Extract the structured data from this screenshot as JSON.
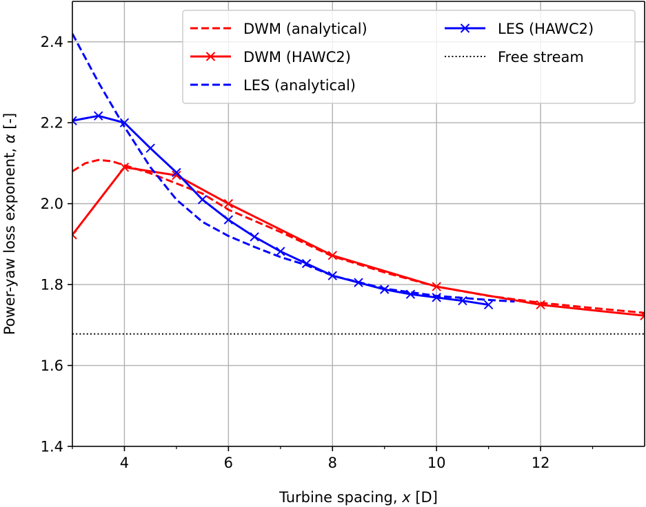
{
  "chart_data": {
    "type": "line",
    "title": "",
    "xlabel": "Turbine spacing, ",
    "xlabel_var": "x",
    "xlabel_unit": " [D]",
    "ylabel": "Power-yaw loss exponent, ",
    "ylabel_var": "α",
    "ylabel_unit": " [-]",
    "xlim": [
      3,
      14
    ],
    "ylim": [
      1.4,
      2.5
    ],
    "xticks": [
      4,
      6,
      8,
      10,
      12
    ],
    "xticks_minor": [
      3,
      5,
      7,
      9,
      11,
      13
    ],
    "yticks": [
      1.4,
      1.6,
      1.8,
      2.0,
      2.2,
      2.4
    ],
    "ytick_labels": [
      "1.4",
      "1.6",
      "1.8",
      "2.0",
      "2.2",
      "2.4"
    ],
    "grid": true,
    "legend_position": "top-right",
    "series": [
      {
        "name": "DWM (analytical)",
        "color": "#ff0000",
        "style": "dashed",
        "marker": "none",
        "x": [
          3.0,
          3.25,
          3.5,
          3.75,
          4.0,
          4.5,
          5.0,
          5.5,
          6.0,
          7.0,
          8.0,
          9.0,
          10.0,
          11.0,
          12.0,
          13.0,
          14.0
        ],
        "y": [
          2.08,
          2.1,
          2.108,
          2.105,
          2.095,
          2.075,
          2.05,
          2.025,
          1.985,
          1.93,
          1.87,
          1.83,
          1.795,
          1.772,
          1.755,
          1.742,
          1.73
        ]
      },
      {
        "name": "DWM (HAWC2)",
        "color": "#ff0000",
        "style": "solid",
        "marker": "x",
        "x": [
          3,
          4,
          5,
          6,
          8,
          10,
          12,
          14
        ],
        "y": [
          1.923,
          2.09,
          2.07,
          2.0,
          1.872,
          1.795,
          1.75,
          1.723
        ]
      },
      {
        "name": "LES (analytical)",
        "color": "#0000ff",
        "style": "dashed",
        "marker": "none",
        "x": [
          3.0,
          3.5,
          4.0,
          4.5,
          5.0,
          5.5,
          6.0,
          6.5,
          7.0,
          7.5,
          8.0,
          9.0,
          10.0,
          11.0,
          11.5
        ],
        "y": [
          2.42,
          2.3,
          2.19,
          2.09,
          2.01,
          1.955,
          1.92,
          1.893,
          1.868,
          1.848,
          1.822,
          1.79,
          1.772,
          1.762,
          1.758
        ]
      },
      {
        "name": "LES (HAWC2)",
        "color": "#0000ff",
        "style": "solid",
        "marker": "x",
        "x": [
          3.0,
          3.5,
          4.0,
          4.5,
          5.0,
          5.5,
          6.0,
          6.5,
          7.0,
          7.5,
          8.0,
          8.5,
          9.0,
          9.5,
          10.0,
          10.5,
          11.0
        ],
        "y": [
          2.205,
          2.217,
          2.2,
          2.137,
          2.077,
          2.01,
          1.96,
          1.918,
          1.882,
          1.852,
          1.822,
          1.805,
          1.788,
          1.776,
          1.768,
          1.76,
          1.75
        ]
      },
      {
        "name": "Free stream",
        "color": "#000000",
        "style": "dotted",
        "marker": "none",
        "x": [
          3.0,
          14.0
        ],
        "y": [
          1.678,
          1.678
        ]
      }
    ],
    "legend_order": [
      [
        "DWM (analytical)",
        "LES (HAWC2)"
      ],
      [
        "DWM (HAWC2)",
        "Free stream"
      ],
      [
        "LES (analytical)"
      ]
    ]
  }
}
